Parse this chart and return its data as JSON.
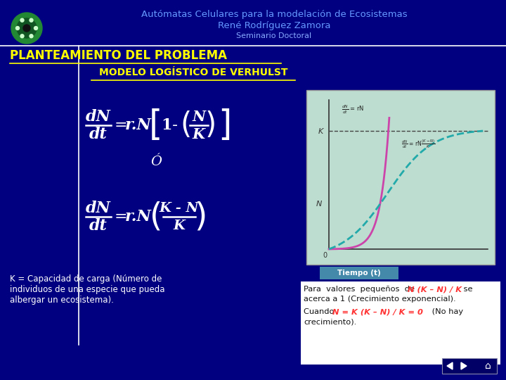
{
  "bg_color": "#000080",
  "title_line1": "Autómatas Celulares para la modelación de Ecosistemas",
  "title_line2": "René Rodríguez Zamora",
  "title_line3": "Seminario Doctoral",
  "title_color": "#6699FF",
  "title_color2": "#88AAFF",
  "section_title": "PLANTEAMIENTO DEL PROBLEMA",
  "section_title_color": "#FFFF00",
  "model_title": "MODELO LOGÍSTICO DE VERHULST",
  "model_title_color": "#FFFF00",
  "o_label": "Ó",
  "k_caption_line1": "K = Capacidad de carga (Número de",
  "k_caption_line2": "individuos de una especie que pueda",
  "k_caption_line3": "albergar un ecosistema).",
  "para_line1a": "Para  valores  pequeños  de ",
  "para_line1b": "N (K – N) / K",
  "para_line1c": " se",
  "para_line2": "acerca a 1 (Crecimiento exponencial).",
  "para_line3a": "Cuando  ",
  "para_line3b": "N = K (K – N) / K = 0",
  "para_line3c": " (No hay",
  "para_line4": "crecimiento).",
  "formula_color": "#FFFFFF",
  "highlight_color": "#FF3333",
  "graph_bg": "#BDDDD0",
  "curve1_color": "#CC44AA",
  "curve2_color": "#22AAAA",
  "tiempo_bg": "#4488AA",
  "tiempo_text": "Tiempo (t)",
  "logo_color": "#228833",
  "line_color": "#FFFFFF",
  "underline_color": "#FFFF00",
  "white": "#FFFFFF",
  "nav_bg": "#000066"
}
